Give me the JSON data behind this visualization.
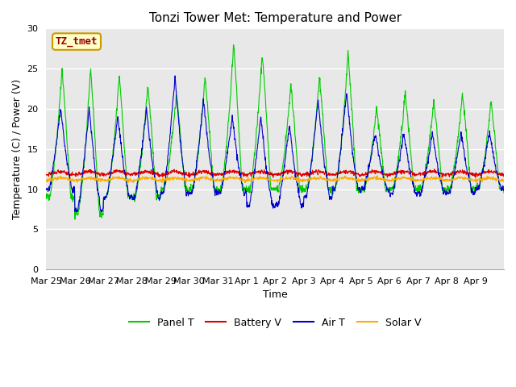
{
  "title": "Tonzi Tower Met: Temperature and Power",
  "xlabel": "Time",
  "ylabel": "Temperature (C) / Power (V)",
  "ylim": [
    0,
    30
  ],
  "yticks": [
    0,
    5,
    10,
    15,
    20,
    25,
    30
  ],
  "annotation": "TZ_tmet",
  "legend_labels": [
    "Panel T",
    "Battery V",
    "Air T",
    "Solar V"
  ],
  "line_colors": [
    "#00cc00",
    "#dd0000",
    "#0000cc",
    "#ffaa00"
  ],
  "fig_bg_color": "#ffffff",
  "plot_bg_color": "#e8e8e8",
  "x_tick_labels": [
    "Mar 25",
    "Mar 26",
    "Mar 27",
    "Mar 28",
    "Mar 29",
    "Mar 30",
    "Mar 31",
    "Apr 1",
    "Apr 2",
    "Apr 3",
    "Apr 4",
    "Apr 5",
    "Apr 6",
    "Apr 7",
    "Apr 8",
    "Apr 9"
  ],
  "title_fontsize": 11,
  "axis_fontsize": 9,
  "tick_fontsize": 8,
  "legend_fontsize": 9,
  "n_days": 16,
  "pts_per_day": 96
}
